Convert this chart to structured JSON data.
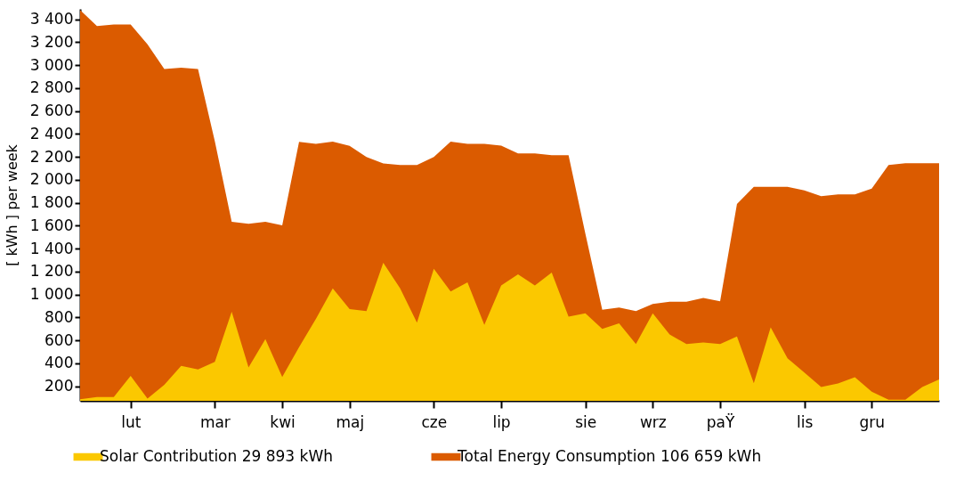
{
  "chart_data": {
    "type": "area",
    "ylabel": "[ kWh ]  per week",
    "categories": [
      null,
      null,
      null,
      "lut",
      null,
      null,
      null,
      null,
      "mar",
      null,
      null,
      null,
      "kwi",
      null,
      null,
      null,
      "maj",
      null,
      null,
      null,
      null,
      "cze",
      null,
      null,
      null,
      "lip",
      null,
      null,
      null,
      null,
      "sie",
      null,
      null,
      null,
      "wrz",
      null,
      null,
      null,
      "paŸ",
      null,
      null,
      null,
      null,
      "lis",
      null,
      null,
      null,
      "gru",
      null,
      null,
      null,
      null
    ],
    "series": [
      {
        "name": "Solar Contribution 29 893 kWh",
        "color": "#fbc800",
        "values": [
          86,
          105,
          105,
          290,
          92,
          211,
          377,
          346,
          412,
          848,
          364,
          610,
          279,
          540,
          787,
          1052,
          872,
          854,
          1277,
          1052,
          753,
          1224,
          1026,
          1105,
          734,
          1078,
          1176,
          1078,
          1190,
          806,
          835,
          700,
          748,
          568,
          835,
          650,
          568,
          581,
          568,
          634,
          226,
          713,
          443,
          319,
          192,
          224,
          277,
          152,
          81,
          81,
          192,
          258
        ]
      },
      {
        "name": "Total Energy Consumption 106 659 kWh",
        "color": "#db5b00",
        "values": [
          3480,
          3341,
          3354,
          3354,
          3182,
          2965,
          2978,
          2965,
          2335,
          1634,
          1616,
          1634,
          1602,
          2330,
          2314,
          2333,
          2296,
          2198,
          2142,
          2129,
          2129,
          2198,
          2333,
          2314,
          2314,
          2298,
          2229,
          2229,
          2214,
          2214,
          1528,
          867,
          885,
          854,
          917,
          936,
          936,
          970,
          941,
          1788,
          1938,
          1938,
          1938,
          1907,
          1856,
          1872,
          1872,
          1923,
          2129,
          2145,
          2145,
          2145
        ]
      }
    ],
    "ylim": [
      72,
      3490
    ],
    "yticks": [
      200,
      400,
      600,
      800,
      {
        "value": 1000,
        "label": "1 000"
      },
      {
        "value": 1200,
        "label": "1 200"
      },
      {
        "value": 1400,
        "label": "1 400"
      },
      {
        "value": 1600,
        "label": "1 600"
      },
      {
        "value": 1800,
        "label": "1 800"
      },
      {
        "value": 2000,
        "label": "2 000"
      },
      {
        "value": 2200,
        "label": "2 200"
      },
      {
        "value": 2400,
        "label": "2 400"
      },
      {
        "value": 2600,
        "label": "2 600"
      },
      {
        "value": 2800,
        "label": "2 800"
      },
      {
        "value": 3000,
        "label": "3 000"
      },
      {
        "value": 3200,
        "label": "3 200"
      },
      {
        "value": 3400,
        "label": "3 400"
      }
    ],
    "grid": false,
    "legend": "bottom"
  }
}
